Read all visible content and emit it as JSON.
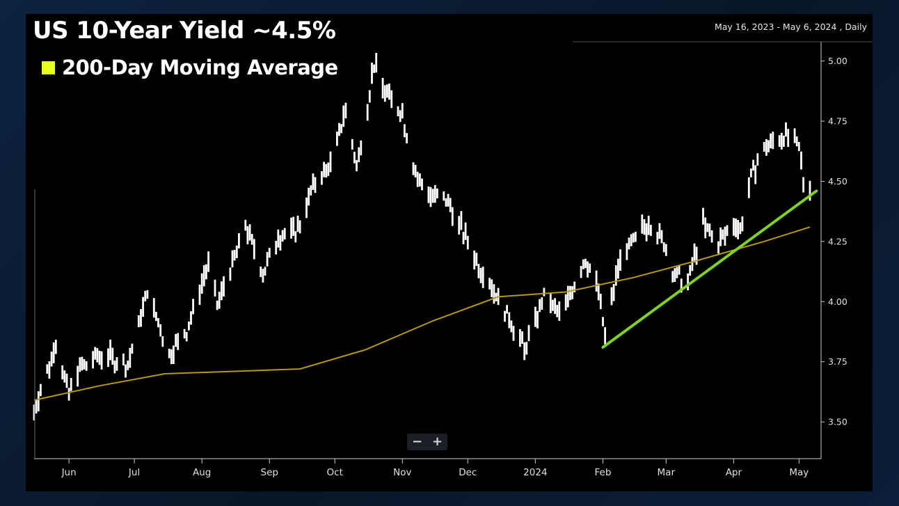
{
  "header": {
    "title": "US 10-Year Yield ~4.5%",
    "legend_label": "200-Day Moving Average",
    "legend_color": "#e6ff1f",
    "date_range": "May 16, 2023 - May 6, 2024 , Daily"
  },
  "zoom": {
    "minus_label": "−",
    "plus_label": "+"
  },
  "chart_data": {
    "type": "bar",
    "style": "ohlc-bars",
    "y_ticks": [
      "3.50",
      "3.75",
      "4.00",
      "4.25",
      "4.50",
      "4.75",
      "5.00"
    ],
    "ylim": [
      3.35,
      5.08
    ],
    "x_ticks": [
      "Jun",
      "Jul",
      "Aug",
      "Sep",
      "Oct",
      "Nov",
      "Dec",
      "2024",
      "Feb",
      "Mar",
      "Apr",
      "May"
    ],
    "xlim": [
      "2023-05-16",
      "2024-05-06"
    ],
    "grid": false,
    "colors": {
      "bars": "#ffffff",
      "moving_average": "#b8981c",
      "trendline": "#7ed321",
      "background": "#000000"
    },
    "price_path": [
      [
        "2023-05-16",
        3.55
      ],
      [
        "2023-05-26",
        3.82
      ],
      [
        "2023-06-01",
        3.62
      ],
      [
        "2023-06-05",
        3.72
      ],
      [
        "2023-06-16",
        3.78
      ],
      [
        "2023-06-28",
        3.73
      ],
      [
        "2023-07-07",
        4.05
      ],
      [
        "2023-07-17",
        3.78
      ],
      [
        "2023-07-25",
        3.88
      ],
      [
        "2023-08-04",
        4.15
      ],
      [
        "2023-08-08",
        3.98
      ],
      [
        "2023-08-21",
        4.32
      ],
      [
        "2023-08-29",
        4.12
      ],
      [
        "2023-09-05",
        4.27
      ],
      [
        "2023-09-14",
        4.3
      ],
      [
        "2023-09-21",
        4.48
      ],
      [
        "2023-09-29",
        4.57
      ],
      [
        "2023-10-06",
        4.8
      ],
      [
        "2023-10-11",
        4.56
      ],
      [
        "2023-10-19",
        4.98
      ],
      [
        "2023-10-23",
        4.9
      ],
      [
        "2023-11-01",
        4.78
      ],
      [
        "2023-11-08",
        4.5
      ],
      [
        "2023-11-14",
        4.45
      ],
      [
        "2023-11-22",
        4.42
      ],
      [
        "2023-11-29",
        4.28
      ],
      [
        "2023-12-06",
        4.15
      ],
      [
        "2023-12-13",
        4.05
      ],
      [
        "2023-12-22",
        3.9
      ],
      [
        "2023-12-27",
        3.8
      ],
      [
        "2024-01-05",
        4.02
      ],
      [
        "2024-01-12",
        3.94
      ],
      [
        "2024-01-24",
        4.18
      ],
      [
        "2024-01-30",
        4.05
      ],
      [
        "2024-02-02",
        3.86
      ],
      [
        "2024-02-09",
        4.18
      ],
      [
        "2024-02-22",
        4.33
      ],
      [
        "2024-02-29",
        4.25
      ],
      [
        "2024-03-04",
        4.12
      ],
      [
        "2024-03-11",
        4.08
      ],
      [
        "2024-03-18",
        4.32
      ],
      [
        "2024-03-25",
        4.24
      ],
      [
        "2024-04-01",
        4.32
      ],
      [
        "2024-04-04",
        4.3
      ],
      [
        "2024-04-10",
        4.55
      ],
      [
        "2024-04-16",
        4.65
      ],
      [
        "2024-04-25",
        4.7
      ],
      [
        "2024-05-01",
        4.63
      ],
      [
        "2024-05-03",
        4.5
      ],
      [
        "2024-05-06",
        4.49
      ]
    ],
    "moving_average": [
      [
        "2023-05-16",
        3.59
      ],
      [
        "2023-06-15",
        3.65
      ],
      [
        "2023-07-15",
        3.7
      ],
      [
        "2023-08-15",
        3.71
      ],
      [
        "2023-09-15",
        3.72
      ],
      [
        "2023-10-15",
        3.8
      ],
      [
        "2023-11-15",
        3.92
      ],
      [
        "2023-12-15",
        4.02
      ],
      [
        "2024-01-15",
        4.04
      ],
      [
        "2024-02-15",
        4.1
      ],
      [
        "2024-03-15",
        4.17
      ],
      [
        "2024-04-15",
        4.25
      ],
      [
        "2024-05-06",
        4.31
      ]
    ],
    "trendline": [
      [
        "2024-02-01",
        3.81
      ],
      [
        "2024-05-09",
        4.46
      ]
    ]
  }
}
